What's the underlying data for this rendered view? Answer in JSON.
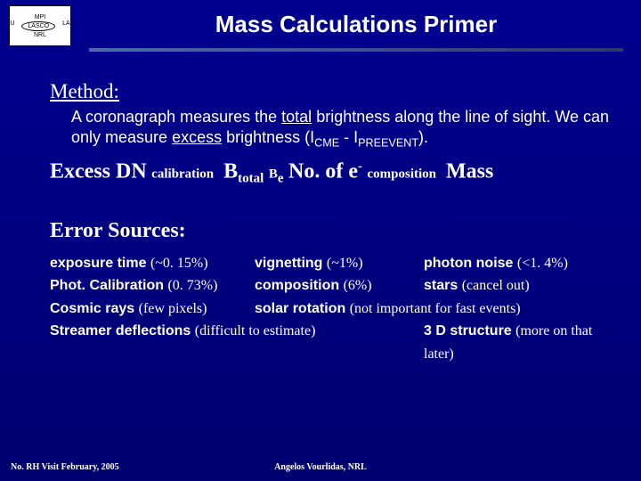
{
  "logo": {
    "top": "MPI",
    "left": "BU",
    "center": "LASCO",
    "right": "LAS",
    "bottom": "NRL"
  },
  "title": "Mass Calculations Primer",
  "method": {
    "heading": "Method:",
    "para_a": "A coronagraph measures the ",
    "para_b": " brightness along the line of sight. We can only measure ",
    "para_c": " brightness (I",
    "para_d": " - I",
    "para_e": ").",
    "total_word": "total",
    "excess_word": "excess",
    "sub_cme": "CME",
    "sub_pre": "PREEVENT"
  },
  "formula": {
    "excess": "Excess DN",
    "calib": "calibration",
    "btotal": "B",
    "btotal_sub": "total",
    "be": "B",
    "be_sub": "e",
    "noe": "No. of e",
    "minus": "-",
    "comp": "composition",
    "mass": "Mass"
  },
  "errors": {
    "heading": "Error Sources:",
    "r1c1_b": "exposure time",
    "r1c1_p": "(~0. 15%)",
    "r1c2_b": "vignetting",
    "r1c2_p": "(~1%)",
    "r1c3_b": "photon noise",
    "r1c3_p": "(<1. 4%)",
    "r2c1_b": "Phot. Calibration",
    "r2c1_p": "(0. 73%)",
    "r2c2_b": "composition",
    "r2c2_p": "(6%)",
    "r2c3_b": "stars",
    "r2c3_p": "(cancel out)",
    "r3c1_b": "Cosmic rays",
    "r3c1_p": "(few pixels)",
    "r3c2_b": "solar rotation",
    "r3c2_p": "(not important for fast events)",
    "r4c1_b": "Streamer deflections",
    "r4c1_p": "(difficult to estimate)",
    "r4c3_b": "3 D structure",
    "r4c3_p": "(more on that later)"
  },
  "footer": {
    "left": "No. RH Visit February, 2005",
    "center": "Angelos Vourlidas, NRL"
  }
}
